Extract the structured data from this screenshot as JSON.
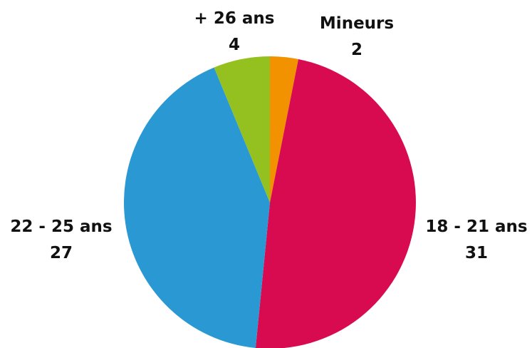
{
  "chart_data": {
    "type": "pie",
    "slices": [
      {
        "label": "Mineurs",
        "value": 2,
        "color": "#F39200"
      },
      {
        "label": "18 - 21 ans",
        "value": 31,
        "color": "#D80B51"
      },
      {
        "label": "22 - 25 ans",
        "value": 27,
        "color": "#2A98D3"
      },
      {
        "label": "+ 26 ans",
        "value": 4,
        "color": "#95C120"
      }
    ],
    "start": "top",
    "direction": "clockwise"
  }
}
